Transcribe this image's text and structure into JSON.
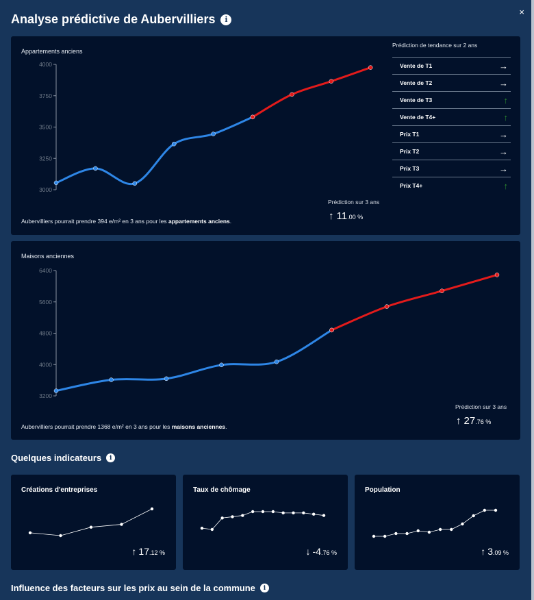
{
  "header": {
    "title": "Analyse prédictive de Aubervilliers",
    "close_label": "×",
    "info_label": "i"
  },
  "panel_apartments": {
    "title": "Appartements anciens",
    "note_prefix": "Aubervilliers pourrait prendre 394 e/m² en 3 ans pour les ",
    "note_bold": "appartements anciens",
    "note_suffix": ".",
    "prediction_label": "Prédiction sur 3 ans",
    "prediction_arrow": "↑",
    "prediction_int": "11",
    "prediction_dec": ".00 %"
  },
  "trend": {
    "heading": "Prédiction de tendance sur 2 ans",
    "rows": [
      {
        "label": "Vente de T1",
        "arrow": "→",
        "dir": "flat"
      },
      {
        "label": "Vente de T2",
        "arrow": "→",
        "dir": "flat"
      },
      {
        "label": "Vente de T3",
        "arrow": "↑",
        "dir": "up"
      },
      {
        "label": "Vente de T4+",
        "arrow": "↑",
        "dir": "up"
      },
      {
        "label": "Prix T1",
        "arrow": "→",
        "dir": "flat"
      },
      {
        "label": "Prix T2",
        "arrow": "→",
        "dir": "flat"
      },
      {
        "label": "Prix T3",
        "arrow": "→",
        "dir": "flat"
      },
      {
        "label": "Prix T4+",
        "arrow": "↑",
        "dir": "up"
      }
    ],
    "colors": {
      "flat": "#ffffff",
      "up": "#2e8b2e"
    }
  },
  "panel_houses": {
    "title": "Maisons anciennes",
    "note_prefix": "Aubervilliers pourrait prendre 1368 e/m² en 3 ans pour les ",
    "note_bold": "maisons anciennes",
    "note_suffix": ".",
    "prediction_label": "Prédiction sur 3 ans",
    "prediction_arrow": "↑",
    "prediction_int": "27",
    "prediction_dec": ".76 %"
  },
  "indicators": {
    "title": "Quelques indicateurs",
    "cards": [
      {
        "title": "Créations d'entreprises",
        "arrow": "↑",
        "int": "17",
        "dec": ".12 %"
      },
      {
        "title": "Taux de chômage",
        "arrow": "↓",
        "int": "-4",
        "dec": ".76 %"
      },
      {
        "title": "Population",
        "arrow": "↑",
        "int": "3",
        "dec": ".09 %"
      }
    ]
  },
  "influence": {
    "title": "Influence des facteurs sur les prix au sein de la commune"
  },
  "colors": {
    "historical": "#2e86e6",
    "predicted": "#e31b1b",
    "panel": "#02112a",
    "background": "#17355a"
  },
  "chart_data": [
    {
      "type": "line",
      "title": "Appartements anciens",
      "ylim": [
        3000,
        4000
      ],
      "yticks": [
        3000,
        3250,
        3500,
        3750,
        4000
      ],
      "ytick_labels": [
        "3000",
        "3250",
        "3500",
        "3750",
        "4000"
      ],
      "series": [
        {
          "values": [
            3055,
            3170,
            3050,
            3365,
            3445,
            3580
          ]
        },
        {
          "values": [
            3580,
            3760,
            3865,
            3975
          ]
        }
      ]
    },
    {
      "type": "line",
      "title": "Maisons anciennes",
      "ylim": [
        3200,
        6400
      ],
      "yticks": [
        3200,
        4000,
        4800,
        5600,
        6400
      ],
      "ytick_labels": [
        "3200",
        "4000",
        "4800",
        "5600",
        "6400"
      ],
      "series": [
        {
          "values": [
            3330,
            3610,
            3640,
            3990,
            4070,
            4880
          ]
        },
        {
          "values": [
            4880,
            5480,
            5880,
            6290
          ]
        }
      ]
    },
    {
      "type": "line",
      "title": "Créations d'entreprises",
      "series": [
        {
          "values": [
            40,
            36,
            48,
            52,
            74
          ]
        }
      ]
    },
    {
      "type": "line",
      "title": "Taux de chômage",
      "series": [
        {
          "values": [
            50,
            49,
            58,
            59,
            60,
            63,
            63,
            63,
            62,
            62,
            62,
            61,
            60
          ]
        }
      ]
    },
    {
      "type": "line",
      "title": "Population",
      "series": [
        {
          "values": [
            40,
            40,
            42,
            42,
            44,
            43,
            45,
            45,
            49,
            55,
            59,
            59
          ]
        }
      ]
    }
  ]
}
